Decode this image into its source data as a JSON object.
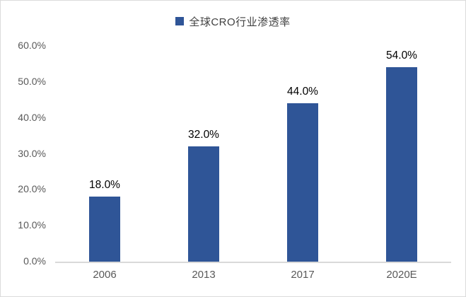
{
  "chart_data": {
    "type": "bar",
    "title": "",
    "legend": "全球CRO行业渗透率",
    "legend_position": "top",
    "categories": [
      "2006",
      "2013",
      "2017",
      "2020E"
    ],
    "values": [
      18,
      32,
      44,
      54
    ],
    "data_labels": [
      "18.0%",
      "32.0%",
      "44.0%",
      "54.0%"
    ],
    "ylim": [
      0,
      60
    ],
    "ytick_step": 10,
    "yticks": [
      "0.0%",
      "10.0%",
      "20.0%",
      "30.0%",
      "40.0%",
      "50.0%",
      "60.0%"
    ],
    "grid": false,
    "xlabel": "",
    "ylabel": ""
  },
  "colors": {
    "bar": "#2F5597",
    "legend_marker": "#2F5597",
    "legend_text": "#404040",
    "axis_line": "#D9D9D9",
    "tick_label": "#595959",
    "data_label": "#000000",
    "frame_border": "#DBDBDB",
    "background": "#FFFFFF"
  }
}
